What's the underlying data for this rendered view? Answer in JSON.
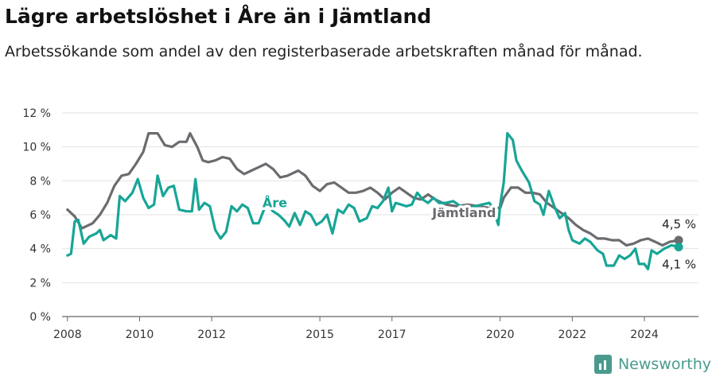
{
  "title": "Lägre arbetslöshet i Åre än i Jämtland",
  "subtitle": "Arbetssökande som andel av den registerbaserade arbetskraften månad för månad.",
  "brand": {
    "name": "Newsworthy",
    "logo_icon": "bar-chart-icon"
  },
  "colors": {
    "are": "#17a596",
    "jamtland": "#6b6b70",
    "grid": "#e2e2e2",
    "axis": "#666666"
  },
  "chart_data": {
    "type": "line",
    "ylim": [
      0,
      12
    ],
    "xlim": [
      2007.85,
      2025.5
    ],
    "y_ticks": [
      0,
      2,
      4,
      6,
      8,
      10,
      12
    ],
    "y_tick_labels": [
      "0 %",
      "2 %",
      "4 %",
      "6 %",
      "8 %",
      "10 %",
      "12 %"
    ],
    "x_ticks": [
      2008,
      2010,
      2012,
      2015,
      2017,
      2020,
      2022,
      2024
    ],
    "x_tick_labels": [
      "2008",
      "2010",
      "2012",
      "2015",
      "2017",
      "2020",
      "2022",
      "2024"
    ],
    "grid": true,
    "series": [
      {
        "name": "Jämtland",
        "color_key": "jamtland",
        "end_label": "4,5 %",
        "points": [
          [
            2008.0,
            6.3
          ],
          [
            2008.2,
            5.9
          ],
          [
            2008.4,
            5.2
          ],
          [
            2008.7,
            5.5
          ],
          [
            2008.9,
            6.0
          ],
          [
            2009.1,
            6.7
          ],
          [
            2009.3,
            7.7
          ],
          [
            2009.5,
            8.3
          ],
          [
            2009.7,
            8.4
          ],
          [
            2009.9,
            9.0
          ],
          [
            2010.1,
            9.7
          ],
          [
            2010.25,
            10.8
          ],
          [
            2010.5,
            10.8
          ],
          [
            2010.7,
            10.1
          ],
          [
            2010.9,
            10.0
          ],
          [
            2011.1,
            10.3
          ],
          [
            2011.3,
            10.3
          ],
          [
            2011.4,
            10.8
          ],
          [
            2011.6,
            10.0
          ],
          [
            2011.75,
            9.2
          ],
          [
            2011.9,
            9.1
          ],
          [
            2012.1,
            9.2
          ],
          [
            2012.3,
            9.4
          ],
          [
            2012.5,
            9.3
          ],
          [
            2012.7,
            8.7
          ],
          [
            2012.9,
            8.4
          ],
          [
            2013.1,
            8.6
          ],
          [
            2013.3,
            8.8
          ],
          [
            2013.5,
            9.0
          ],
          [
            2013.7,
            8.7
          ],
          [
            2013.9,
            8.2
          ],
          [
            2014.1,
            8.3
          ],
          [
            2014.4,
            8.6
          ],
          [
            2014.6,
            8.3
          ],
          [
            2014.8,
            7.7
          ],
          [
            2015.0,
            7.4
          ],
          [
            2015.2,
            7.8
          ],
          [
            2015.4,
            7.9
          ],
          [
            2015.6,
            7.6
          ],
          [
            2015.8,
            7.3
          ],
          [
            2016.0,
            7.3
          ],
          [
            2016.2,
            7.4
          ],
          [
            2016.4,
            7.6
          ],
          [
            2016.6,
            7.3
          ],
          [
            2016.8,
            6.9
          ],
          [
            2017.0,
            7.3
          ],
          [
            2017.2,
            7.6
          ],
          [
            2017.4,
            7.3
          ],
          [
            2017.6,
            7.0
          ],
          [
            2017.8,
            6.9
          ],
          [
            2018.0,
            7.2
          ],
          [
            2018.2,
            6.9
          ],
          [
            2018.5,
            6.6
          ],
          [
            2018.8,
            6.5
          ],
          [
            2019.1,
            6.6
          ],
          [
            2019.4,
            6.5
          ],
          [
            2019.7,
            6.4
          ],
          [
            2020.0,
            6.4
          ],
          [
            2020.1,
            7.0
          ],
          [
            2020.3,
            7.6
          ],
          [
            2020.5,
            7.6
          ],
          [
            2020.7,
            7.3
          ],
          [
            2020.9,
            7.3
          ],
          [
            2021.1,
            7.2
          ],
          [
            2021.3,
            6.7
          ],
          [
            2021.5,
            6.4
          ],
          [
            2021.7,
            6.1
          ],
          [
            2021.9,
            5.8
          ],
          [
            2022.1,
            5.4
          ],
          [
            2022.3,
            5.1
          ],
          [
            2022.5,
            4.9
          ],
          [
            2022.7,
            4.6
          ],
          [
            2022.9,
            4.6
          ],
          [
            2023.1,
            4.5
          ],
          [
            2023.3,
            4.5
          ],
          [
            2023.5,
            4.2
          ],
          [
            2023.7,
            4.3
          ],
          [
            2023.9,
            4.5
          ],
          [
            2024.1,
            4.6
          ],
          [
            2024.3,
            4.4
          ],
          [
            2024.5,
            4.2
          ],
          [
            2024.7,
            4.4
          ],
          [
            2024.95,
            4.5
          ]
        ]
      },
      {
        "name": "Åre",
        "color_key": "are",
        "end_label": "4,1 %",
        "points": [
          [
            2008.0,
            3.6
          ],
          [
            2008.1,
            3.7
          ],
          [
            2008.2,
            5.6
          ],
          [
            2008.3,
            5.7
          ],
          [
            2008.45,
            4.3
          ],
          [
            2008.6,
            4.7
          ],
          [
            2008.8,
            4.9
          ],
          [
            2008.9,
            5.1
          ],
          [
            2009.0,
            4.5
          ],
          [
            2009.2,
            4.8
          ],
          [
            2009.35,
            4.6
          ],
          [
            2009.45,
            7.1
          ],
          [
            2009.6,
            6.8
          ],
          [
            2009.8,
            7.3
          ],
          [
            2009.95,
            8.1
          ],
          [
            2010.1,
            7.0
          ],
          [
            2010.25,
            6.4
          ],
          [
            2010.4,
            6.6
          ],
          [
            2010.5,
            8.3
          ],
          [
            2010.65,
            7.1
          ],
          [
            2010.8,
            7.6
          ],
          [
            2010.95,
            7.7
          ],
          [
            2011.1,
            6.3
          ],
          [
            2011.3,
            6.2
          ],
          [
            2011.45,
            6.2
          ],
          [
            2011.55,
            8.1
          ],
          [
            2011.65,
            6.3
          ],
          [
            2011.8,
            6.7
          ],
          [
            2011.95,
            6.5
          ],
          [
            2012.1,
            5.1
          ],
          [
            2012.25,
            4.6
          ],
          [
            2012.4,
            5.0
          ],
          [
            2012.55,
            6.5
          ],
          [
            2012.7,
            6.2
          ],
          [
            2012.85,
            6.6
          ],
          [
            2013.0,
            6.4
          ],
          [
            2013.15,
            5.5
          ],
          [
            2013.3,
            5.5
          ],
          [
            2013.45,
            6.3
          ],
          [
            2013.55,
            6.6
          ],
          [
            2013.7,
            6.2
          ],
          [
            2013.85,
            6.0
          ],
          [
            2014.0,
            5.7
          ],
          [
            2014.15,
            5.3
          ],
          [
            2014.3,
            6.1
          ],
          [
            2014.45,
            5.4
          ],
          [
            2014.6,
            6.2
          ],
          [
            2014.75,
            6.0
          ],
          [
            2014.9,
            5.4
          ],
          [
            2015.05,
            5.6
          ],
          [
            2015.2,
            6.0
          ],
          [
            2015.35,
            4.9
          ],
          [
            2015.5,
            6.3
          ],
          [
            2015.65,
            6.1
          ],
          [
            2015.8,
            6.6
          ],
          [
            2015.95,
            6.4
          ],
          [
            2016.1,
            5.6
          ],
          [
            2016.3,
            5.8
          ],
          [
            2016.45,
            6.5
          ],
          [
            2016.6,
            6.4
          ],
          [
            2016.75,
            6.8
          ],
          [
            2016.9,
            7.6
          ],
          [
            2017.0,
            6.2
          ],
          [
            2017.1,
            6.7
          ],
          [
            2017.25,
            6.6
          ],
          [
            2017.4,
            6.5
          ],
          [
            2017.55,
            6.6
          ],
          [
            2017.7,
            7.3
          ],
          [
            2017.85,
            6.9
          ],
          [
            2018.0,
            6.7
          ],
          [
            2018.15,
            7.0
          ],
          [
            2018.3,
            6.7
          ],
          [
            2018.5,
            6.7
          ],
          [
            2018.7,
            6.8
          ],
          [
            2018.9,
            6.5
          ],
          [
            2019.1,
            6.4
          ],
          [
            2019.3,
            6.5
          ],
          [
            2019.5,
            6.6
          ],
          [
            2019.7,
            6.7
          ],
          [
            2019.8,
            6.4
          ],
          [
            2019.95,
            5.4
          ],
          [
            2020.0,
            6.6
          ],
          [
            2020.1,
            7.9
          ],
          [
            2020.2,
            10.8
          ],
          [
            2020.35,
            10.4
          ],
          [
            2020.45,
            9.2
          ],
          [
            2020.6,
            8.6
          ],
          [
            2020.8,
            7.9
          ],
          [
            2020.95,
            6.8
          ],
          [
            2021.1,
            6.6
          ],
          [
            2021.2,
            6.0
          ],
          [
            2021.35,
            7.4
          ],
          [
            2021.5,
            6.5
          ],
          [
            2021.65,
            5.8
          ],
          [
            2021.8,
            6.1
          ],
          [
            2021.9,
            5.1
          ],
          [
            2022.0,
            4.5
          ],
          [
            2022.2,
            4.3
          ],
          [
            2022.35,
            4.6
          ],
          [
            2022.5,
            4.4
          ],
          [
            2022.7,
            3.9
          ],
          [
            2022.85,
            3.7
          ],
          [
            2022.95,
            3.0
          ],
          [
            2023.15,
            3.0
          ],
          [
            2023.3,
            3.6
          ],
          [
            2023.45,
            3.4
          ],
          [
            2023.6,
            3.6
          ],
          [
            2023.75,
            4.0
          ],
          [
            2023.85,
            3.1
          ],
          [
            2024.0,
            3.1
          ],
          [
            2024.1,
            2.8
          ],
          [
            2024.2,
            3.9
          ],
          [
            2024.35,
            3.7
          ],
          [
            2024.55,
            4.0
          ],
          [
            2024.75,
            4.2
          ],
          [
            2024.95,
            4.1
          ]
        ]
      }
    ]
  }
}
